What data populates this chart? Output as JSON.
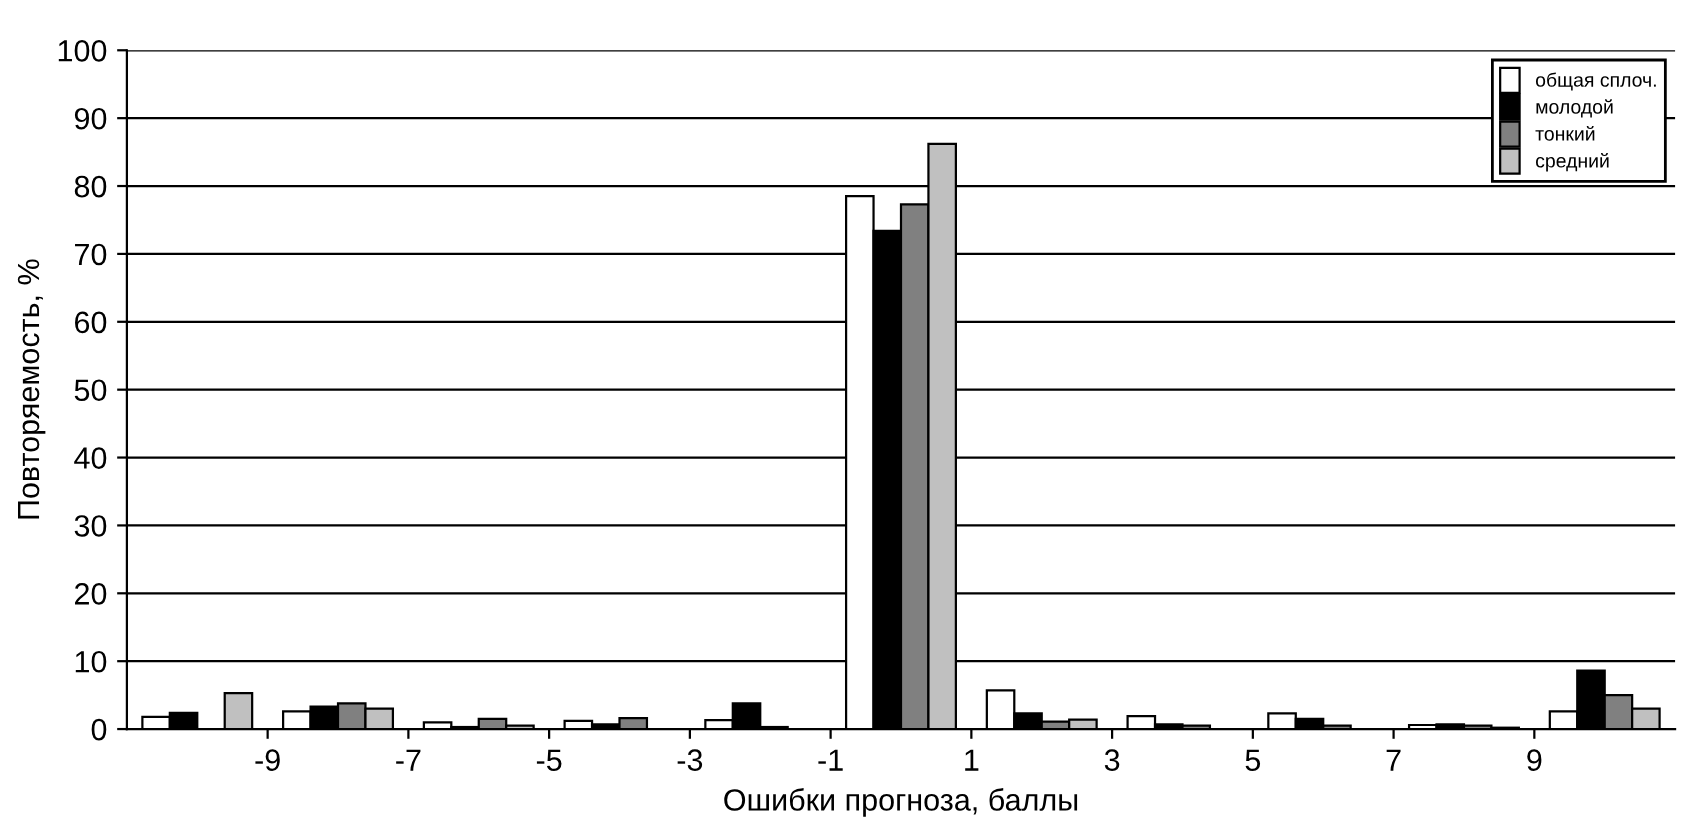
{
  "chart_data": {
    "type": "bar",
    "xlabel": "Ошибки прогноза, баллы",
    "ylabel": "Повторяемость, %",
    "x": [
      -10,
      -8,
      -6,
      -4,
      -2,
      0,
      2,
      4,
      6,
      8,
      10
    ],
    "series": [
      {
        "name": "общая сплоч.",
        "color": "#ffffff",
        "values": [
          1.8,
          2.6,
          1.0,
          1.2,
          1.3,
          78.5,
          5.7,
          1.9,
          2.3,
          0.6,
          2.6
        ]
      },
      {
        "name": "молодой",
        "color": "#000000",
        "values": [
          2.4,
          3.3,
          0.3,
          0.7,
          3.8,
          73.4,
          2.3,
          0.7,
          1.5,
          0.7,
          8.6
        ]
      },
      {
        "name": "тонкий",
        "color": "#808080",
        "values": [
          null,
          3.8,
          1.5,
          1.6,
          0.3,
          77.3,
          1.1,
          0.5,
          0.5,
          0.5,
          5.0
        ]
      },
      {
        "name": "средний",
        "color": "#c0c0c0",
        "values": [
          5.3,
          3.0,
          0.5,
          null,
          null,
          86.2,
          1.4,
          null,
          null,
          0.2,
          3.0
        ]
      }
    ],
    "xlim": [
      -11,
      11
    ],
    "xticks": [
      -9,
      -7,
      -5,
      -3,
      -1,
      1,
      3,
      5,
      7,
      9
    ],
    "ylim": [
      0,
      100
    ],
    "yticks": [
      0,
      10,
      20,
      30,
      40,
      50,
      60,
      70,
      80,
      90,
      100
    ],
    "grid": "y",
    "legend": "top right"
  }
}
